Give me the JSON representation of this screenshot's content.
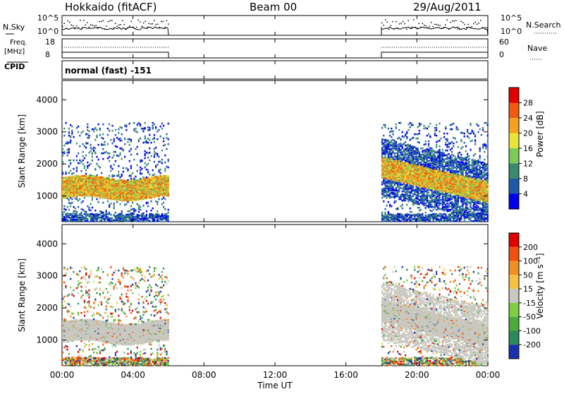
{
  "header": {
    "title": "Hokkaido (fitACF)",
    "beam": "Beam 00",
    "date": "29/Aug/2011"
  },
  "nsky_panel": {
    "left_label": "N.Sky",
    "right_label": "N.Search",
    "y_ticks_left": [
      "10^5",
      "10^0"
    ],
    "y_ticks_right": [
      "10^5",
      "10^0"
    ]
  },
  "freq_panel": {
    "left_label": "Freq.",
    "left_unit": "[MHz]",
    "right_label": "Nave",
    "left_ticks": [
      "18",
      "8"
    ],
    "right_ticks": [
      "60",
      "0"
    ]
  },
  "cpid": {
    "label": "CPID",
    "value": "normal (fast) -151"
  },
  "chart_data": [
    {
      "type": "heatmap",
      "name": "power",
      "ylabel": "Slant Range [km]",
      "ylim": [
        200,
        4600
      ],
      "y_ticks": [
        "4000",
        "3000",
        "2000",
        "1000"
      ],
      "colorbar_label": "Power [dB]",
      "colorbar_ticks": [
        "28",
        "24",
        "20",
        "16",
        "12",
        "8",
        "4"
      ],
      "colors": [
        "#0000ee",
        "#1e5aa8",
        "#3a8a6e",
        "#7acb5a",
        "#e8e43a",
        "#f6a020",
        "#f05a10",
        "#e00000"
      ],
      "data_intervals_ut": [
        [
          "00:00",
          "06:00"
        ],
        [
          "18:00",
          "24:00"
        ]
      ]
    },
    {
      "type": "heatmap",
      "name": "velocity",
      "ylabel": "Slant Range [km]",
      "ylim": [
        200,
        4600
      ],
      "y_ticks": [
        "4000",
        "3000",
        "2000",
        "1000"
      ],
      "colorbar_label": "Velocity [m s⁻¹]",
      "colorbar_ticks": [
        "200",
        "100",
        "50",
        "15",
        "-15",
        "-50",
        "-100",
        "-200"
      ],
      "colors": [
        "#1a2fae",
        "#2a8a5a",
        "#4aaa3a",
        "#7ad040",
        "#c8c8c0",
        "#f6c040",
        "#f09020",
        "#f05010",
        "#e00000"
      ],
      "data_intervals_ut": [
        [
          "00:00",
          "06:00"
        ],
        [
          "18:00",
          "24:00"
        ]
      ]
    }
  ],
  "x_axis": {
    "ticks": [
      "00:00",
      "04:00",
      "08:00",
      "12:00",
      "16:00",
      "20:00",
      "00:00"
    ],
    "label": "Time UT"
  }
}
